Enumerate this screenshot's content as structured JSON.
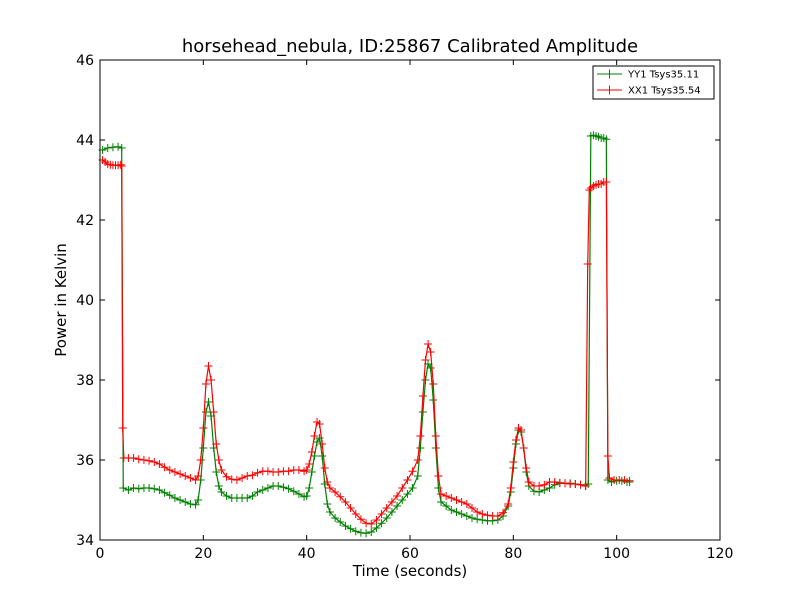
{
  "chart_data": {
    "type": "line",
    "title": "horsehead_nebula, ID:25867 Calibrated Amplitude",
    "xlabel": "Time (seconds)",
    "ylabel": "Power in Kelvin",
    "xlim": [
      0,
      120
    ],
    "ylim": [
      34,
      46
    ],
    "xticks": [
      0,
      20,
      40,
      60,
      80,
      100,
      120
    ],
    "yticks": [
      34,
      36,
      38,
      40,
      42,
      44,
      46
    ],
    "grid": false,
    "legend_position": "top-right",
    "series": [
      {
        "name": "YY1 Tsys35.11",
        "color": "#008000",
        "marker": "plus",
        "points": [
          [
            0.5,
            43.75
          ],
          [
            1.5,
            43.8
          ],
          [
            2.5,
            43.82
          ],
          [
            3.5,
            43.83
          ],
          [
            4.2,
            43.8
          ],
          [
            4.5,
            35.3
          ],
          [
            5.5,
            35.25
          ],
          [
            6.5,
            35.3
          ],
          [
            7.5,
            35.28
          ],
          [
            8.5,
            35.3
          ],
          [
            9.5,
            35.3
          ],
          [
            10.5,
            35.28
          ],
          [
            11.5,
            35.25
          ],
          [
            12.5,
            35.18
          ],
          [
            13.5,
            35.12
          ],
          [
            14.5,
            35.05
          ],
          [
            15.5,
            35.0
          ],
          [
            16.5,
            34.95
          ],
          [
            17.5,
            34.9
          ],
          [
            18.5,
            34.88
          ],
          [
            19.0,
            35.0
          ],
          [
            19.5,
            35.5
          ],
          [
            20.0,
            36.3
          ],
          [
            20.5,
            37.2
          ],
          [
            21.0,
            37.45
          ],
          [
            21.5,
            37.1
          ],
          [
            22.0,
            36.3
          ],
          [
            22.5,
            35.7
          ],
          [
            23.0,
            35.35
          ],
          [
            23.5,
            35.2
          ],
          [
            24.5,
            35.1
          ],
          [
            25.5,
            35.05
          ],
          [
            26.5,
            35.05
          ],
          [
            27.5,
            35.05
          ],
          [
            28.5,
            35.05
          ],
          [
            29.5,
            35.1
          ],
          [
            30.5,
            35.2
          ],
          [
            31.5,
            35.25
          ],
          [
            32.5,
            35.3
          ],
          [
            33.5,
            35.35
          ],
          [
            34.5,
            35.35
          ],
          [
            35.5,
            35.32
          ],
          [
            36.5,
            35.28
          ],
          [
            37.5,
            35.22
          ],
          [
            38.5,
            35.15
          ],
          [
            39.5,
            35.08
          ],
          [
            40.0,
            35.1
          ],
          [
            40.5,
            35.3
          ],
          [
            41.0,
            35.7
          ],
          [
            41.5,
            36.1
          ],
          [
            42.0,
            36.45
          ],
          [
            42.5,
            36.55
          ],
          [
            43.0,
            36.1
          ],
          [
            43.5,
            35.4
          ],
          [
            44.0,
            34.9
          ],
          [
            44.5,
            34.7
          ],
          [
            45.5,
            34.55
          ],
          [
            46.5,
            34.45
          ],
          [
            47.5,
            34.35
          ],
          [
            48.5,
            34.28
          ],
          [
            49.5,
            34.22
          ],
          [
            50.5,
            34.18
          ],
          [
            51.5,
            34.17
          ],
          [
            52.5,
            34.2
          ],
          [
            53.5,
            34.3
          ],
          [
            54.5,
            34.42
          ],
          [
            55.5,
            34.55
          ],
          [
            56.5,
            34.7
          ],
          [
            57.5,
            34.85
          ],
          [
            58.5,
            35.0
          ],
          [
            59.5,
            35.15
          ],
          [
            60.5,
            35.3
          ],
          [
            61.5,
            35.6
          ],
          [
            62.0,
            36.3
          ],
          [
            62.5,
            37.2
          ],
          [
            63.0,
            38.0
          ],
          [
            63.5,
            38.4
          ],
          [
            64.0,
            38.3
          ],
          [
            64.5,
            37.5
          ],
          [
            65.0,
            36.3
          ],
          [
            65.5,
            35.3
          ],
          [
            66.0,
            34.95
          ],
          [
            67.0,
            34.85
          ],
          [
            68.0,
            34.75
          ],
          [
            69.0,
            34.7
          ],
          [
            70.0,
            34.65
          ],
          [
            71.0,
            34.6
          ],
          [
            72.0,
            34.55
          ],
          [
            73.0,
            34.52
          ],
          [
            74.0,
            34.5
          ],
          [
            75.0,
            34.48
          ],
          [
            76.0,
            34.48
          ],
          [
            77.0,
            34.5
          ],
          [
            78.0,
            34.6
          ],
          [
            79.0,
            34.85
          ],
          [
            79.5,
            35.2
          ],
          [
            80.0,
            35.8
          ],
          [
            80.5,
            36.4
          ],
          [
            81.0,
            36.75
          ],
          [
            81.5,
            36.7
          ],
          [
            82.0,
            36.3
          ],
          [
            82.5,
            35.7
          ],
          [
            83.0,
            35.35
          ],
          [
            84.0,
            35.22
          ],
          [
            85.0,
            35.2
          ],
          [
            86.0,
            35.25
          ],
          [
            87.0,
            35.3
          ],
          [
            88.0,
            35.38
          ],
          [
            89.0,
            35.42
          ],
          [
            90.0,
            35.42
          ],
          [
            91.0,
            35.42
          ],
          [
            92.0,
            35.4
          ],
          [
            93.0,
            35.38
          ],
          [
            94.0,
            35.35
          ],
          [
            94.5,
            35.4
          ],
          [
            95.0,
            44.1
          ],
          [
            95.5,
            44.12
          ],
          [
            96.0,
            44.1
          ],
          [
            96.5,
            44.08
          ],
          [
            97.0,
            44.05
          ],
          [
            97.5,
            44.05
          ],
          [
            98.0,
            44.02
          ],
          [
            98.3,
            35.5
          ],
          [
            99.0,
            35.45
          ],
          [
            100.0,
            35.48
          ],
          [
            101.0,
            35.48
          ],
          [
            102.0,
            35.45
          ],
          [
            102.5,
            35.45
          ]
        ]
      },
      {
        "name": "XX1 Tsys35.54",
        "color": "#ff0000",
        "marker": "plus",
        "points": [
          [
            0.5,
            43.5
          ],
          [
            1.0,
            43.45
          ],
          [
            1.5,
            43.4
          ],
          [
            2.0,
            43.38
          ],
          [
            2.5,
            43.37
          ],
          [
            3.0,
            43.37
          ],
          [
            3.5,
            43.37
          ],
          [
            4.0,
            43.38
          ],
          [
            4.2,
            43.35
          ],
          [
            4.4,
            36.8
          ],
          [
            4.6,
            36.05
          ],
          [
            5.5,
            36.05
          ],
          [
            6.5,
            36.05
          ],
          [
            7.5,
            36.02
          ],
          [
            8.5,
            36.0
          ],
          [
            9.5,
            35.98
          ],
          [
            10.5,
            35.95
          ],
          [
            11.5,
            35.9
          ],
          [
            12.5,
            35.82
          ],
          [
            13.5,
            35.75
          ],
          [
            14.5,
            35.7
          ],
          [
            15.5,
            35.65
          ],
          [
            16.5,
            35.6
          ],
          [
            17.5,
            35.55
          ],
          [
            18.5,
            35.5
          ],
          [
            19.0,
            35.6
          ],
          [
            19.5,
            36.0
          ],
          [
            20.0,
            36.8
          ],
          [
            20.5,
            37.9
          ],
          [
            21.0,
            38.35
          ],
          [
            21.5,
            38.0
          ],
          [
            22.0,
            37.2
          ],
          [
            22.5,
            36.4
          ],
          [
            23.0,
            36.0
          ],
          [
            23.5,
            35.75
          ],
          [
            24.5,
            35.58
          ],
          [
            25.5,
            35.52
          ],
          [
            26.5,
            35.5
          ],
          [
            27.5,
            35.55
          ],
          [
            28.5,
            35.6
          ],
          [
            29.5,
            35.62
          ],
          [
            30.5,
            35.68
          ],
          [
            31.5,
            35.72
          ],
          [
            32.5,
            35.72
          ],
          [
            33.5,
            35.7
          ],
          [
            34.5,
            35.7
          ],
          [
            35.5,
            35.72
          ],
          [
            36.5,
            35.72
          ],
          [
            37.5,
            35.75
          ],
          [
            38.5,
            35.75
          ],
          [
            39.5,
            35.72
          ],
          [
            40.0,
            35.75
          ],
          [
            40.5,
            35.9
          ],
          [
            41.0,
            36.2
          ],
          [
            41.5,
            36.6
          ],
          [
            42.0,
            36.95
          ],
          [
            42.5,
            36.9
          ],
          [
            43.0,
            36.4
          ],
          [
            43.5,
            35.8
          ],
          [
            44.0,
            35.45
          ],
          [
            44.5,
            35.3
          ],
          [
            45.5,
            35.2
          ],
          [
            46.5,
            35.08
          ],
          [
            47.5,
            34.95
          ],
          [
            48.5,
            34.8
          ],
          [
            49.5,
            34.65
          ],
          [
            50.5,
            34.52
          ],
          [
            51.5,
            34.42
          ],
          [
            52.5,
            34.4
          ],
          [
            53.5,
            34.5
          ],
          [
            54.5,
            34.65
          ],
          [
            55.5,
            34.8
          ],
          [
            56.5,
            34.95
          ],
          [
            57.5,
            35.1
          ],
          [
            58.5,
            35.3
          ],
          [
            59.5,
            35.5
          ],
          [
            60.5,
            35.72
          ],
          [
            61.5,
            36.0
          ],
          [
            62.0,
            36.6
          ],
          [
            62.5,
            37.6
          ],
          [
            63.0,
            38.5
          ],
          [
            63.5,
            38.9
          ],
          [
            64.0,
            38.7
          ],
          [
            64.5,
            37.9
          ],
          [
            65.0,
            36.6
          ],
          [
            65.5,
            35.6
          ],
          [
            66.0,
            35.15
          ],
          [
            67.0,
            35.1
          ],
          [
            68.0,
            35.05
          ],
          [
            69.0,
            35.0
          ],
          [
            70.0,
            34.95
          ],
          [
            71.0,
            34.9
          ],
          [
            72.0,
            34.8
          ],
          [
            73.0,
            34.7
          ],
          [
            74.0,
            34.65
          ],
          [
            75.0,
            34.62
          ],
          [
            76.0,
            34.6
          ],
          [
            77.0,
            34.6
          ],
          [
            78.0,
            34.68
          ],
          [
            79.0,
            34.9
          ],
          [
            79.5,
            35.3
          ],
          [
            80.0,
            35.95
          ],
          [
            80.5,
            36.5
          ],
          [
            81.0,
            36.8
          ],
          [
            81.5,
            36.75
          ],
          [
            82.0,
            36.3
          ],
          [
            82.5,
            35.8
          ],
          [
            83.0,
            35.45
          ],
          [
            84.0,
            35.35
          ],
          [
            85.0,
            35.35
          ],
          [
            86.0,
            35.38
          ],
          [
            87.0,
            35.45
          ],
          [
            88.0,
            35.45
          ],
          [
            89.0,
            35.43
          ],
          [
            90.0,
            35.42
          ],
          [
            91.0,
            35.4
          ],
          [
            92.0,
            35.4
          ],
          [
            93.0,
            35.38
          ],
          [
            94.0,
            35.35
          ],
          [
            94.4,
            40.9
          ],
          [
            94.7,
            42.75
          ],
          [
            95.0,
            42.8
          ],
          [
            95.5,
            42.85
          ],
          [
            96.0,
            42.88
          ],
          [
            96.5,
            42.9
          ],
          [
            97.0,
            42.9
          ],
          [
            97.5,
            42.95
          ],
          [
            98.0,
            42.95
          ],
          [
            98.3,
            36.1
          ],
          [
            98.6,
            35.55
          ],
          [
            99.5,
            35.5
          ],
          [
            100.5,
            35.5
          ],
          [
            101.5,
            35.5
          ],
          [
            102.5,
            35.48
          ]
        ]
      }
    ]
  }
}
